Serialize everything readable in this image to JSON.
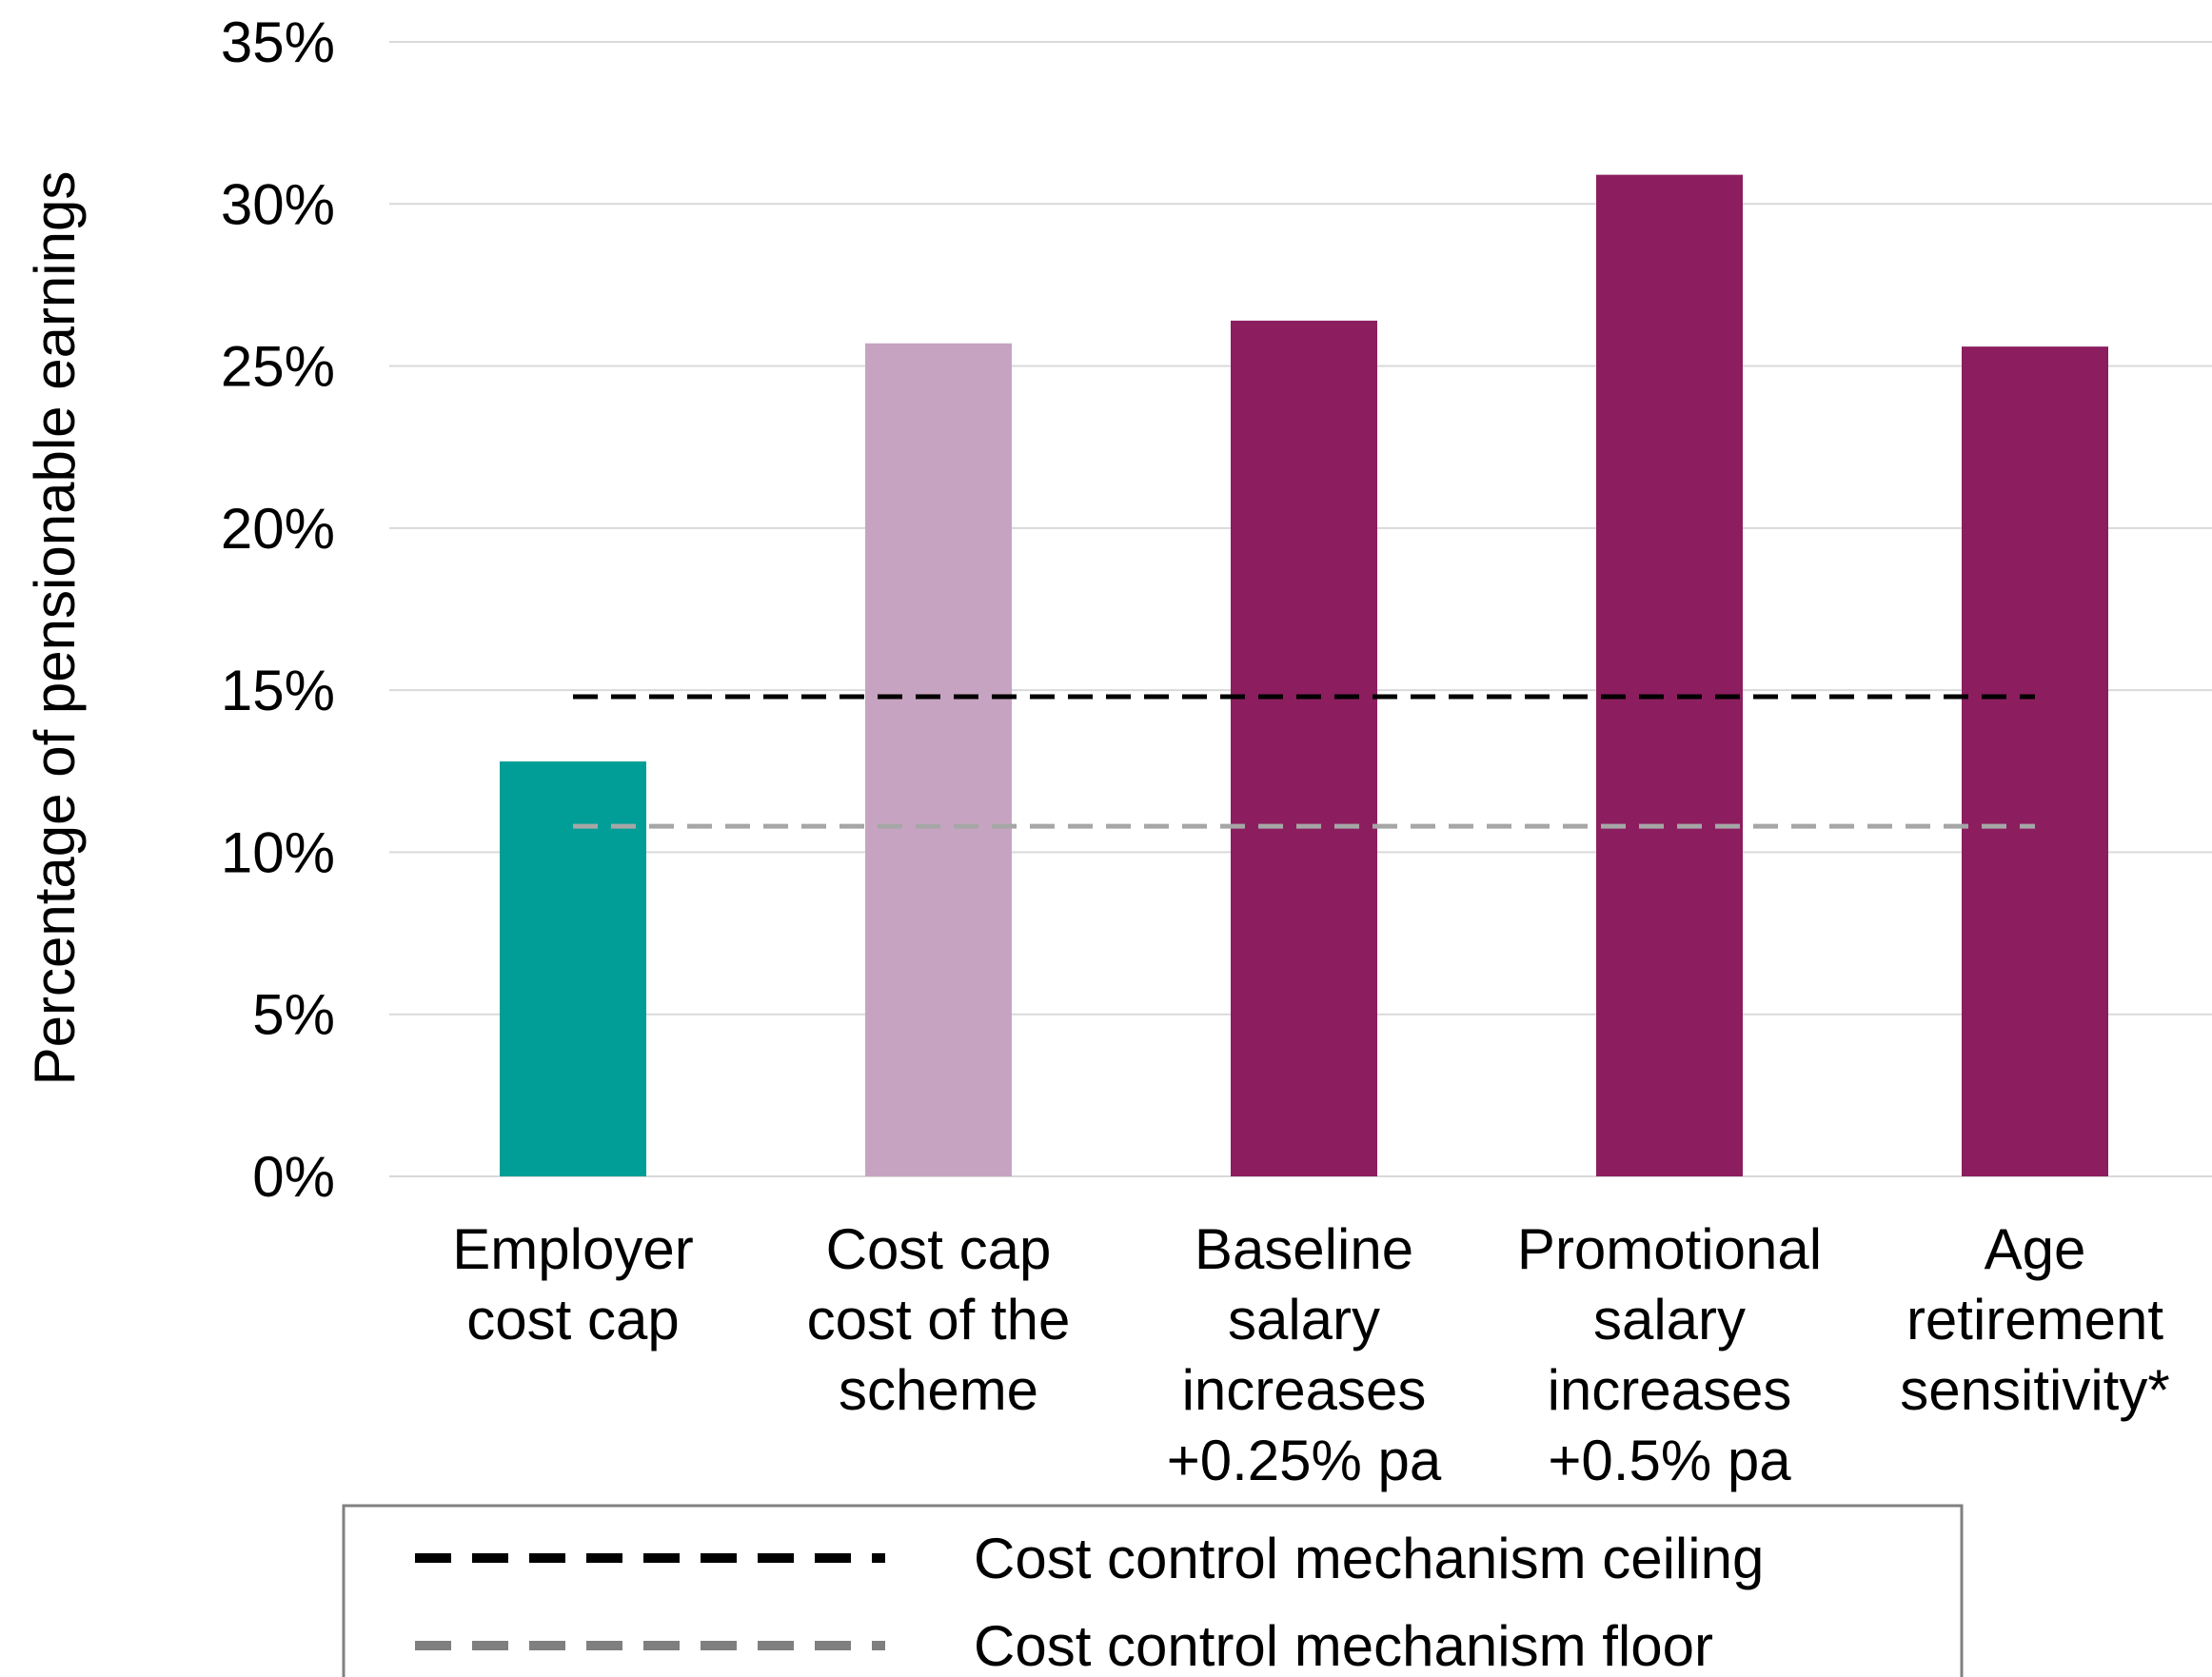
{
  "chart_data": {
    "type": "bar",
    "title": "",
    "xlabel": "",
    "ylabel": "Percentage of pensionable earnings",
    "ylim": [
      0,
      35
    ],
    "y_ticks": [
      0,
      5,
      10,
      15,
      20,
      25,
      30,
      35
    ],
    "y_tick_labels": [
      "0%",
      "5%",
      "10%",
      "15%",
      "20%",
      "25%",
      "30%",
      "35%"
    ],
    "grid": true,
    "categories": [
      [
        "Employer",
        "cost cap"
      ],
      [
        "Cost cap",
        "cost of the",
        "scheme"
      ],
      [
        "Baseline",
        "salary",
        "increases",
        "+0.25% pa"
      ],
      [
        "Promotional",
        "salary",
        "increases",
        "+0.5% pa"
      ],
      [
        "Age",
        "retirement",
        "sensitivity*"
      ]
    ],
    "values": [
      12.8,
      25.7,
      26.4,
      30.9,
      25.6
    ],
    "bar_colors": [
      "#009e96",
      "#c6a4c1",
      "#8c1e5f",
      "#8c1e5f",
      "#8c1e5f"
    ],
    "reference_lines": [
      {
        "name": "Cost control mechanism ceiling",
        "value": 14.8,
        "color": "#000000",
        "style": "dashed"
      },
      {
        "name": "Cost control mechanism floor",
        "value": 10.8,
        "color": "#a6a6a6",
        "style": "dashed"
      }
    ],
    "legend": {
      "placement": "bottom",
      "entries": [
        {
          "label": "Cost control mechanism ceiling",
          "color": "#000000"
        },
        {
          "label": "Cost control mechanism floor",
          "color": "#7f7f7f"
        }
      ]
    },
    "gridline_color": "#d9d9d9"
  }
}
